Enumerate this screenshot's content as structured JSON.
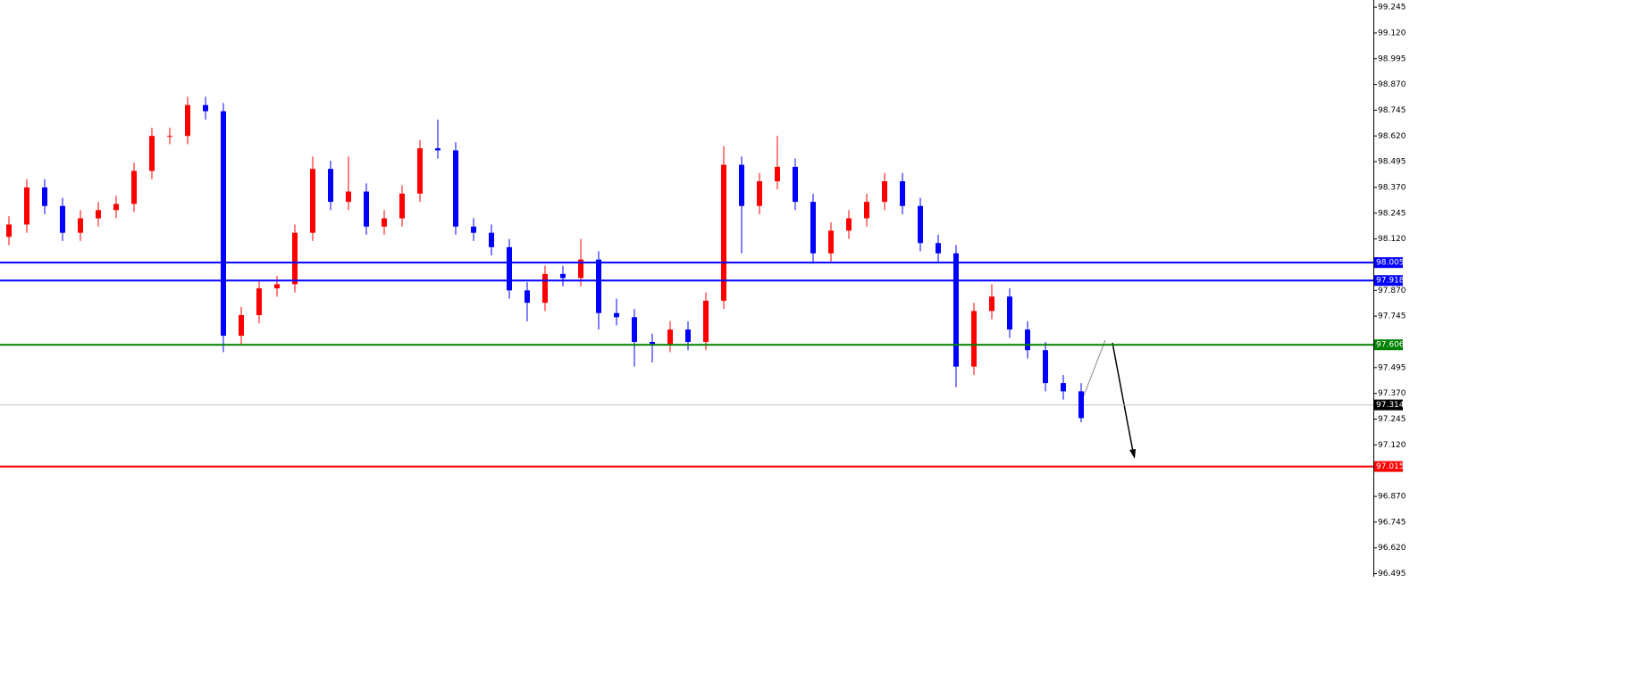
{
  "chart_data": {
    "type": "candlestick",
    "up_color": "#ff0000",
    "down_color": "#0000ff",
    "ylim": [
      96.48,
      99.28
    ],
    "yticks": [
      99.245,
      {
        "value": 99.12,
        "label": "99.120"
      },
      98.995,
      {
        "value": 98.87,
        "label": "98.870"
      },
      98.745,
      {
        "value": 98.62,
        "label": "98.620"
      },
      98.495,
      {
        "value": 98.37,
        "label": "98.370"
      },
      98.245,
      {
        "value": 98.12,
        "label": "98.120"
      },
      {
        "value": 97.87,
        "label": "97.870"
      },
      97.745,
      97.495,
      {
        "value": 97.37,
        "label": "97.370"
      },
      97.245,
      {
        "value": 97.12,
        "label": "97.120"
      },
      {
        "value": 96.87,
        "label": "96.870"
      },
      96.745,
      {
        "value": 96.62,
        "label": "96.620"
      },
      96.495
    ],
    "open": [
      98.13,
      98.19,
      98.37,
      98.28,
      98.15,
      98.22,
      98.26,
      98.29,
      98.45,
      98.62,
      98.62,
      98.77,
      98.74,
      97.65,
      97.75,
      97.88,
      97.9,
      98.15,
      98.46,
      98.3,
      98.35,
      98.18,
      98.22,
      98.34,
      98.56,
      98.55,
      98.18,
      98.15,
      98.08,
      97.87,
      97.81,
      97.95,
      97.93,
      98.02,
      97.76,
      97.74,
      97.62,
      97.61,
      97.68,
      97.62,
      97.82,
      98.48,
      98.28,
      98.4,
      98.47,
      98.3,
      98.05,
      98.16,
      98.22,
      98.3,
      98.4,
      98.28,
      98.1,
      98.05,
      97.5,
      97.77,
      97.84,
      97.68,
      97.58,
      97.42,
      97.38
    ],
    "high": [
      98.23,
      98.41,
      98.41,
      98.32,
      98.26,
      98.3,
      98.33,
      98.49,
      98.66,
      98.66,
      98.81,
      98.81,
      98.78,
      97.79,
      97.92,
      97.94,
      98.19,
      98.52,
      98.5,
      98.52,
      98.39,
      98.26,
      98.38,
      98.6,
      98.7,
      98.59,
      98.22,
      98.19,
      98.12,
      97.91,
      97.99,
      97.99,
      98.12,
      98.06,
      97.83,
      97.78,
      97.66,
      97.72,
      97.72,
      97.86,
      98.57,
      98.52,
      98.44,
      98.62,
      98.51,
      98.34,
      98.2,
      98.26,
      98.34,
      98.44,
      98.44,
      98.32,
      98.14,
      98.09,
      97.81,
      97.9,
      97.88,
      97.72,
      97.62,
      97.46,
      97.42
    ],
    "low": [
      98.09,
      98.15,
      98.24,
      98.11,
      98.11,
      98.18,
      98.22,
      98.25,
      98.41,
      98.58,
      98.58,
      98.7,
      97.57,
      97.61,
      97.71,
      97.84,
      97.86,
      98.11,
      98.26,
      98.26,
      98.14,
      98.14,
      98.18,
      98.3,
      98.51,
      98.14,
      98.11,
      98.04,
      97.83,
      97.72,
      97.77,
      97.89,
      97.89,
      97.68,
      97.7,
      97.5,
      97.52,
      97.57,
      97.58,
      97.58,
      97.78,
      98.05,
      98.24,
      98.36,
      98.26,
      98.0,
      98.01,
      98.12,
      98.18,
      98.26,
      98.24,
      98.06,
      98.01,
      97.4,
      97.46,
      97.73,
      97.64,
      97.54,
      97.38,
      97.34,
      97.23
    ],
    "close": [
      98.19,
      98.37,
      98.28,
      98.15,
      98.22,
      98.26,
      98.29,
      98.45,
      98.62,
      98.62,
      98.77,
      98.74,
      97.65,
      97.75,
      97.88,
      97.9,
      98.15,
      98.46,
      98.3,
      98.35,
      98.18,
      98.22,
      98.34,
      98.56,
      98.55,
      98.18,
      98.15,
      98.08,
      97.87,
      97.81,
      97.95,
      97.93,
      98.02,
      97.76,
      97.74,
      97.62,
      97.61,
      97.68,
      97.62,
      97.82,
      98.48,
      98.28,
      98.4,
      98.47,
      98.3,
      98.05,
      98.16,
      98.22,
      98.3,
      98.4,
      98.28,
      98.1,
      98.05,
      97.5,
      97.77,
      97.84,
      97.68,
      97.58,
      97.42,
      97.38,
      97.25
    ],
    "levels": [
      {
        "value": 98.005,
        "color": "#0000ff"
      },
      {
        "value": 97.918,
        "color": "#0000ff"
      },
      {
        "value": 97.606,
        "color": "#008000"
      },
      {
        "value": 97.015,
        "color": "#ff0000"
      }
    ],
    "current_price": 97.314
  }
}
